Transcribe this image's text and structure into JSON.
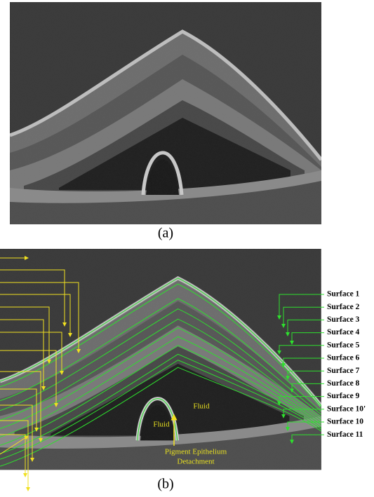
{
  "figures": [
    {
      "caption": "(a)"
    },
    {
      "caption": "(b)",
      "surface_labels": [
        "Surface 1",
        "Surface 2",
        "Surface 3",
        "Surface 4",
        "Surface 5",
        "Surface 6",
        "Surface 7",
        "Surface 8",
        "Surface 9",
        "Surface 10'",
        "Surface 10",
        "Surface 11"
      ],
      "fluid_labels": [
        "Fluid",
        "Fluid"
      ],
      "ped_label": [
        "Pigment Epithelium",
        "Detachment"
      ]
    }
  ]
}
